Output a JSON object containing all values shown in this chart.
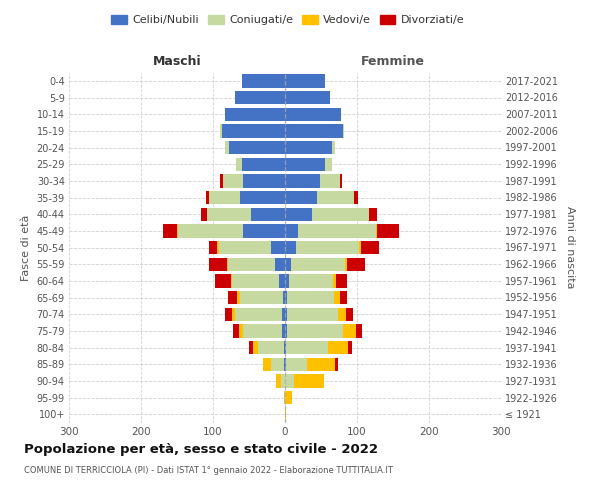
{
  "age_groups": [
    "100+",
    "95-99",
    "90-94",
    "85-89",
    "80-84",
    "75-79",
    "70-74",
    "65-69",
    "60-64",
    "55-59",
    "50-54",
    "45-49",
    "40-44",
    "35-39",
    "30-34",
    "25-29",
    "20-24",
    "15-19",
    "10-14",
    "5-9",
    "0-4"
  ],
  "birth_years": [
    "≤ 1921",
    "1922-1926",
    "1927-1931",
    "1932-1936",
    "1937-1941",
    "1942-1946",
    "1947-1951",
    "1952-1956",
    "1957-1961",
    "1962-1966",
    "1967-1971",
    "1972-1976",
    "1977-1981",
    "1982-1986",
    "1987-1991",
    "1992-1996",
    "1997-2001",
    "2002-2006",
    "2007-2011",
    "2012-2016",
    "2017-2021"
  ],
  "colors": {
    "celibe": "#4472c4",
    "coniugato": "#c5d9a0",
    "vedovo": "#ffc000",
    "divorziato": "#cc0000"
  },
  "maschi": {
    "celibe": [
      0,
      0,
      0,
      2,
      2,
      4,
      4,
      3,
      8,
      14,
      20,
      58,
      47,
      62,
      58,
      60,
      78,
      88,
      83,
      70,
      60
    ],
    "coniugato": [
      0,
      0,
      5,
      18,
      35,
      55,
      65,
      60,
      65,
      65,
      72,
      90,
      62,
      43,
      28,
      8,
      5,
      2,
      0,
      0,
      0
    ],
    "vedovo": [
      0,
      1,
      8,
      10,
      8,
      5,
      5,
      4,
      2,
      2,
      2,
      2,
      0,
      0,
      0,
      0,
      0,
      0,
      0,
      0,
      0
    ],
    "divorziato": [
      0,
      0,
      0,
      0,
      5,
      8,
      10,
      12,
      22,
      25,
      12,
      20,
      8,
      5,
      4,
      0,
      0,
      0,
      0,
      0,
      0
    ]
  },
  "femmine": {
    "nubile": [
      0,
      0,
      0,
      2,
      2,
      3,
      3,
      3,
      5,
      8,
      15,
      18,
      38,
      44,
      48,
      55,
      65,
      80,
      78,
      63,
      55
    ],
    "coniugata": [
      0,
      2,
      12,
      28,
      58,
      78,
      70,
      65,
      62,
      75,
      88,
      108,
      78,
      52,
      28,
      10,
      5,
      2,
      0,
      0,
      0
    ],
    "vedova": [
      2,
      8,
      42,
      40,
      28,
      18,
      12,
      8,
      4,
      3,
      2,
      2,
      0,
      0,
      0,
      0,
      0,
      0,
      0,
      0,
      0
    ],
    "divorziata": [
      0,
      0,
      0,
      4,
      5,
      8,
      10,
      10,
      15,
      25,
      25,
      30,
      12,
      5,
      3,
      0,
      0,
      0,
      0,
      0,
      0
    ]
  },
  "xlim": 300,
  "title": "Popolazione per età, sesso e stato civile - 2022",
  "subtitle": "COMUNE DI TERRICCIOLA (PI) - Dati ISTAT 1° gennaio 2022 - Elaborazione TUTTITALIA.IT",
  "xlabel_left": "Maschi",
  "xlabel_right": "Femmine",
  "ylabel_left": "Fasce di età",
  "ylabel_right": "Anni di nascita",
  "legend_labels": [
    "Celibi/Nubili",
    "Coniugati/e",
    "Vedovi/e",
    "Divorziati/e"
  ],
  "background_color": "#ffffff",
  "grid_color": "#cccccc"
}
